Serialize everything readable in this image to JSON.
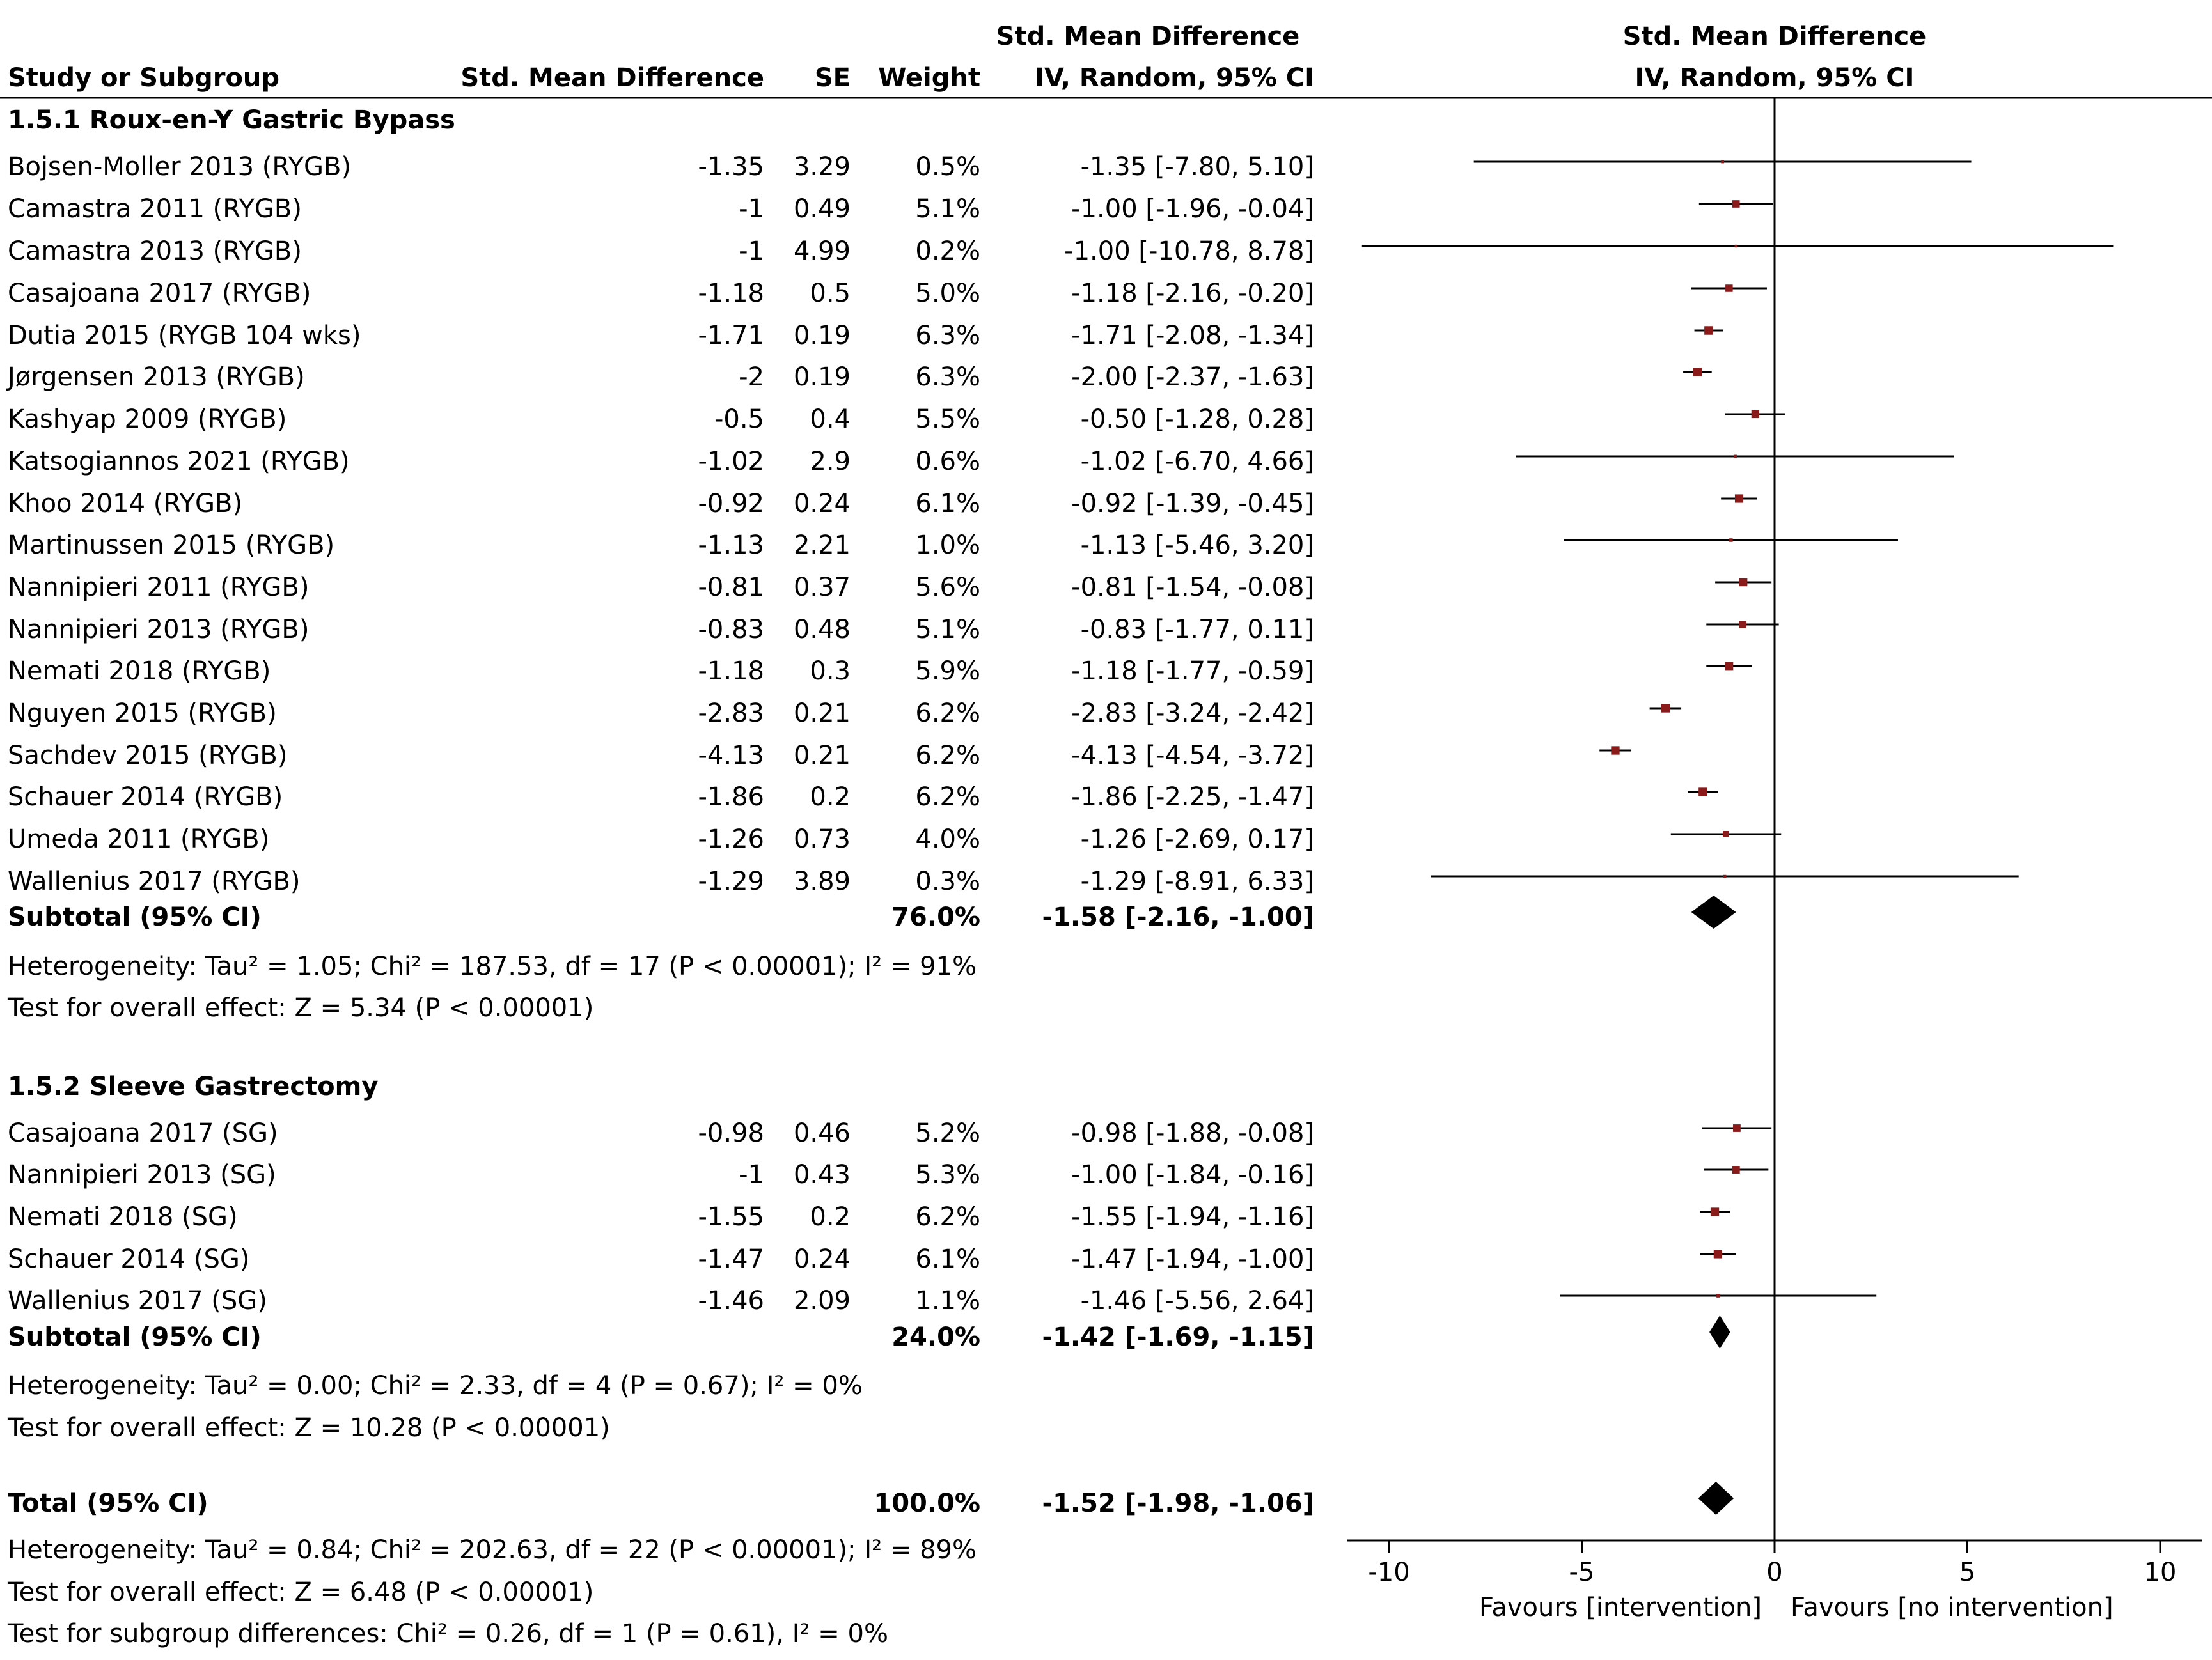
{
  "header": {
    "col_study": "Study or Subgroup",
    "col_smd": "Std. Mean Difference",
    "col_se": "SE",
    "col_weight": "Weight",
    "col_ci_top": "Std. Mean Difference",
    "col_ci_bottom": "IV, Random, 95% CI",
    "plot_top": "Std. Mean Difference",
    "plot_bottom": "IV, Random, 95% CI"
  },
  "groups": [
    {
      "title": "1.5.1 Roux-en-Y Gastric Bypass",
      "studies": [
        {
          "name": "Bojsen-Moller 2013 (RYGB)",
          "smd": "-1.35",
          "se": "3.29",
          "weight": "0.5%",
          "ci": "-1.35 [-7.80, 5.10]",
          "est": -1.35,
          "lo": -7.8,
          "hi": 5.1,
          "w": 0.5
        },
        {
          "name": "Camastra 2011 (RYGB)",
          "smd": "-1",
          "se": "0.49",
          "weight": "5.1%",
          "ci": "-1.00 [-1.96, -0.04]",
          "est": -1.0,
          "lo": -1.96,
          "hi": -0.04,
          "w": 5.1
        },
        {
          "name": "Camastra 2013 (RYGB)",
          "smd": "-1",
          "se": "4.99",
          "weight": "0.2%",
          "ci": "-1.00 [-10.78, 8.78]",
          "est": -1.0,
          "lo": -10.78,
          "hi": 8.78,
          "w": 0.2
        },
        {
          "name": "Casajoana 2017 (RYGB)",
          "smd": "-1.18",
          "se": "0.5",
          "weight": "5.0%",
          "ci": "-1.18 [-2.16, -0.20]",
          "est": -1.18,
          "lo": -2.16,
          "hi": -0.2,
          "w": 5.0
        },
        {
          "name": "Dutia 2015 (RYGB 104 wks)",
          "smd": "-1.71",
          "se": "0.19",
          "weight": "6.3%",
          "ci": "-1.71 [-2.08, -1.34]",
          "est": -1.71,
          "lo": -2.08,
          "hi": -1.34,
          "w": 6.3
        },
        {
          "name": "Jørgensen 2013 (RYGB)",
          "smd": "-2",
          "se": "0.19",
          "weight": "6.3%",
          "ci": "-2.00 [-2.37, -1.63]",
          "est": -2.0,
          "lo": -2.37,
          "hi": -1.63,
          "w": 6.3
        },
        {
          "name": "Kashyap 2009 (RYGB)",
          "smd": "-0.5",
          "se": "0.4",
          "weight": "5.5%",
          "ci": "-0.50 [-1.28, 0.28]",
          "est": -0.5,
          "lo": -1.28,
          "hi": 0.28,
          "w": 5.5
        },
        {
          "name": "Katsogiannos 2021 (RYGB)",
          "smd": "-1.02",
          "se": "2.9",
          "weight": "0.6%",
          "ci": "-1.02 [-6.70, 4.66]",
          "est": -1.02,
          "lo": -6.7,
          "hi": 4.66,
          "w": 0.6
        },
        {
          "name": "Khoo 2014 (RYGB)",
          "smd": "-0.92",
          "se": "0.24",
          "weight": "6.1%",
          "ci": "-0.92 [-1.39, -0.45]",
          "est": -0.92,
          "lo": -1.39,
          "hi": -0.45,
          "w": 6.1
        },
        {
          "name": "Martinussen 2015 (RYGB)",
          "smd": "-1.13",
          "se": "2.21",
          "weight": "1.0%",
          "ci": "-1.13 [-5.46, 3.20]",
          "est": -1.13,
          "lo": -5.46,
          "hi": 3.2,
          "w": 1.0
        },
        {
          "name": "Nannipieri 2011 (RYGB)",
          "smd": "-0.81",
          "se": "0.37",
          "weight": "5.6%",
          "ci": "-0.81 [-1.54, -0.08]",
          "est": -0.81,
          "lo": -1.54,
          "hi": -0.08,
          "w": 5.6
        },
        {
          "name": "Nannipieri 2013 (RYGB)",
          "smd": "-0.83",
          "se": "0.48",
          "weight": "5.1%",
          "ci": "-0.83 [-1.77, 0.11]",
          "est": -0.83,
          "lo": -1.77,
          "hi": 0.11,
          "w": 5.1
        },
        {
          "name": "Nemati 2018 (RYGB)",
          "smd": "-1.18",
          "se": "0.3",
          "weight": "5.9%",
          "ci": "-1.18 [-1.77, -0.59]",
          "est": -1.18,
          "lo": -1.77,
          "hi": -0.59,
          "w": 5.9
        },
        {
          "name": "Nguyen 2015 (RYGB)",
          "smd": "-2.83",
          "se": "0.21",
          "weight": "6.2%",
          "ci": "-2.83 [-3.24, -2.42]",
          "est": -2.83,
          "lo": -3.24,
          "hi": -2.42,
          "w": 6.2
        },
        {
          "name": "Sachdev 2015 (RYGB)",
          "smd": "-4.13",
          "se": "0.21",
          "weight": "6.2%",
          "ci": "-4.13 [-4.54, -3.72]",
          "est": -4.13,
          "lo": -4.54,
          "hi": -3.72,
          "w": 6.2
        },
        {
          "name": "Schauer 2014 (RYGB)",
          "smd": "-1.86",
          "se": "0.2",
          "weight": "6.2%",
          "ci": "-1.86 [-2.25, -1.47]",
          "est": -1.86,
          "lo": -2.25,
          "hi": -1.47,
          "w": 6.2
        },
        {
          "name": "Umeda 2011 (RYGB)",
          "smd": "-1.26",
          "se": "0.73",
          "weight": "4.0%",
          "ci": "-1.26 [-2.69, 0.17]",
          "est": -1.26,
          "lo": -2.69,
          "hi": 0.17,
          "w": 4.0
        },
        {
          "name": "Wallenius 2017 (RYGB)",
          "smd": "-1.29",
          "se": "3.89",
          "weight": "0.3%",
          "ci": "-1.29 [-8.91, 6.33]",
          "est": -1.29,
          "lo": -8.91,
          "hi": 6.33,
          "w": 0.3
        }
      ],
      "subtotal": {
        "label": "Subtotal (95% CI)",
        "weight": "76.0%",
        "ci": "-1.58 [-2.16, -1.00]",
        "est": -1.58,
        "lo": -2.16,
        "hi": -1.0
      },
      "heterogeneity": "Heterogeneity: Tau² = 1.05; Chi² = 187.53, df = 17 (P < 0.00001); I² = 91%",
      "overall": "Test for overall effect: Z = 5.34 (P < 0.00001)"
    },
    {
      "title": "1.5.2 Sleeve Gastrectomy",
      "studies": [
        {
          "name": "Casajoana 2017 (SG)",
          "smd": "-0.98",
          "se": "0.46",
          "weight": "5.2%",
          "ci": "-0.98 [-1.88, -0.08]",
          "est": -0.98,
          "lo": -1.88,
          "hi": -0.08,
          "w": 5.2
        },
        {
          "name": "Nannipieri 2013 (SG)",
          "smd": "-1",
          "se": "0.43",
          "weight": "5.3%",
          "ci": "-1.00 [-1.84, -0.16]",
          "est": -1.0,
          "lo": -1.84,
          "hi": -0.16,
          "w": 5.3
        },
        {
          "name": "Nemati 2018 (SG)",
          "smd": "-1.55",
          "se": "0.2",
          "weight": "6.2%",
          "ci": "-1.55 [-1.94, -1.16]",
          "est": -1.55,
          "lo": -1.94,
          "hi": -1.16,
          "w": 6.2
        },
        {
          "name": "Schauer 2014 (SG)",
          "smd": "-1.47",
          "se": "0.24",
          "weight": "6.1%",
          "ci": "-1.47 [-1.94, -1.00]",
          "est": -1.47,
          "lo": -1.94,
          "hi": -1.0,
          "w": 6.1
        },
        {
          "name": "Wallenius 2017 (SG)",
          "smd": "-1.46",
          "se": "2.09",
          "weight": "1.1%",
          "ci": "-1.46 [-5.56, 2.64]",
          "est": -1.46,
          "lo": -5.56,
          "hi": 2.64,
          "w": 1.1
        }
      ],
      "subtotal": {
        "label": "Subtotal (95% CI)",
        "weight": "24.0%",
        "ci": "-1.42 [-1.69, -1.15]",
        "est": -1.42,
        "lo": -1.69,
        "hi": -1.15
      },
      "heterogeneity": "Heterogeneity: Tau² = 0.00; Chi² = 2.33, df = 4 (P = 0.67); I² = 0%",
      "overall": "Test for overall effect: Z = 10.28 (P < 0.00001)"
    }
  ],
  "total": {
    "label": "Total (95% CI)",
    "weight": "100.0%",
    "ci": "-1.52 [-1.98, -1.06]",
    "est": -1.52,
    "lo": -1.98,
    "hi": -1.06,
    "heterogeneity": "Heterogeneity: Tau² = 0.84; Chi² = 202.63, df = 22 (P < 0.00001); I² = 89%",
    "overall": "Test for overall effect: Z = 6.48 (P < 0.00001)",
    "subgroup": "Test for subgroup differences: Chi² = 0.26, df = 1 (P = 0.61), I² = 0%"
  },
  "axis": {
    "ticks": [
      {
        "value": -10,
        "label": "-10"
      },
      {
        "value": -5,
        "label": "-5"
      },
      {
        "value": 0,
        "label": "0"
      },
      {
        "value": 5,
        "label": "5"
      },
      {
        "value": 10,
        "label": "10"
      }
    ],
    "favours_left": "Favours [intervention]",
    "favours_right": "Favours [no intervention]"
  },
  "colors": {
    "marker": "#8b1a1a",
    "line": "#000000",
    "diamond": "#000000"
  },
  "chart_data": {
    "type": "forest",
    "title": "Std. Mean Difference IV, Random, 95% CI",
    "xlabel": "Favours [intervention]   Favours [no intervention]",
    "xlim": [
      -10,
      10
    ],
    "xticks": [
      -10,
      -5,
      0,
      5,
      10
    ],
    "grid": false,
    "series": [
      {
        "name": "1.5.1 Roux-en-Y Gastric Bypass",
        "subtotal": -1.58
      },
      {
        "name": "1.5.2 Sleeve Gastrectomy",
        "subtotal": -1.42
      }
    ],
    "overall": -1.52
  }
}
